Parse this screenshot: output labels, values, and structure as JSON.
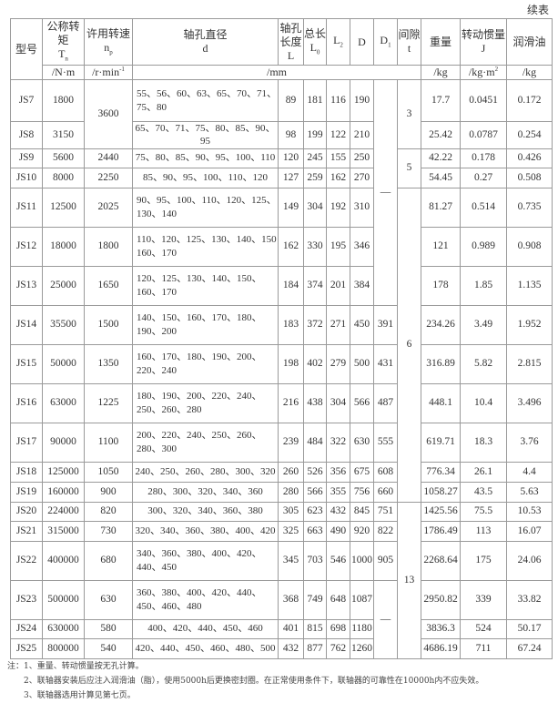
{
  "continued_label": "续表",
  "header": {
    "model": "型号",
    "torque": {
      "label": "公称转矩",
      "sym": "T",
      "sub": "n",
      "unit": "/N·m"
    },
    "speed": {
      "label": "许用转速",
      "sym": "n",
      "sub": "p",
      "unit": "/r·min",
      "unit_sup": "-1"
    },
    "bore": {
      "label": "轴孔直径",
      "sym": "d"
    },
    "bore_len": {
      "label": "轴孔长度",
      "sym": "L"
    },
    "total_len": {
      "label": "总长",
      "sym": "L",
      "sub": "0"
    },
    "l2": {
      "sym": "L",
      "sub": "2"
    },
    "d_outer": {
      "sym": "D"
    },
    "d1": {
      "sym": "D",
      "sub": "1"
    },
    "gap": {
      "label": "间隙",
      "sym": "t"
    },
    "weight": {
      "label": "重量",
      "unit": "/kg"
    },
    "inertia": {
      "label": "转动惯量",
      "sym": "J",
      "unit": "/kg·m",
      "unit_sup": "2"
    },
    "oil": {
      "label": "润滑油",
      "unit": "/kg"
    },
    "mm_unit": "/mm"
  },
  "rows": [
    {
      "model": "JS7",
      "T": "1800",
      "n": "3600",
      "d": "55、56、60、63、65、70、71、75、80",
      "L": "89",
      "L0": "181",
      "L2": "116",
      "D": "190",
      "D1": "—",
      "t": "3",
      "w": "17.7",
      "J": "0.0451",
      "oil": "0.172"
    },
    {
      "model": "JS8",
      "T": "3150",
      "n": "",
      "d": "65、70、71、75、80、85、90、95",
      "L": "98",
      "L0": "199",
      "L2": "122",
      "D": "210",
      "D1": "",
      "t": "",
      "w": "25.42",
      "J": "0.0787",
      "oil": "0.254"
    },
    {
      "model": "JS9",
      "T": "5600",
      "n": "2440",
      "d": "75、80、85、90、95、100、110",
      "L": "120",
      "L0": "245",
      "L2": "155",
      "D": "250",
      "D1": "",
      "t": "5",
      "w": "42.22",
      "J": "0.178",
      "oil": "0.426"
    },
    {
      "model": "JS10",
      "T": "8000",
      "n": "2250",
      "d": "85、90、95、100、110、120",
      "L": "127",
      "L0": "259",
      "L2": "162",
      "D": "270",
      "D1": "",
      "t": "",
      "w": "54.45",
      "J": "0.27",
      "oil": "0.508"
    },
    {
      "model": "JS11",
      "T": "12500",
      "n": "2025",
      "d": "90、95、100、110、120、125、130、140",
      "L": "149",
      "L0": "304",
      "L2": "192",
      "D": "310",
      "D1": "",
      "t": "6",
      "w": "81.27",
      "J": "0.514",
      "oil": "0.735"
    },
    {
      "model": "JS12",
      "T": "18000",
      "n": "1800",
      "d": "110、120、125、130、140、150 160、170",
      "L": "162",
      "L0": "330",
      "L2": "195",
      "D": "346",
      "D1": "",
      "t": "",
      "w": "121",
      "J": "0.989",
      "oil": "0.908"
    },
    {
      "model": "JS13",
      "T": "25000",
      "n": "1650",
      "d": "120、125、130、140、150、160、170",
      "L": "184",
      "L0": "374",
      "L2": "201",
      "D": "384",
      "D1": "",
      "t": "",
      "w": "178",
      "J": "1.85",
      "oil": "1.135"
    },
    {
      "model": "JS14",
      "T": "35500",
      "n": "1500",
      "d": "140、150、160、170、180、190、200",
      "L": "183",
      "L0": "372",
      "L2": "271",
      "D": "450",
      "D1": "391",
      "t": "",
      "w": "234.26",
      "J": "3.49",
      "oil": "1.952"
    },
    {
      "model": "JS15",
      "T": "50000",
      "n": "1350",
      "d": "160、170、180、190、200、220、240",
      "L": "198",
      "L0": "402",
      "L2": "279",
      "D": "500",
      "D1": "431",
      "t": "",
      "w": "316.89",
      "J": "5.82",
      "oil": "2.815"
    },
    {
      "model": "JS16",
      "T": "63000",
      "n": "1225",
      "d": "180、190、200、220、240、250、260、280",
      "L": "216",
      "L0": "438",
      "L2": "304",
      "D": "566",
      "D1": "487",
      "t": "",
      "w": "448.1",
      "J": "10.4",
      "oil": "3.496"
    },
    {
      "model": "JS17",
      "T": "90000",
      "n": "1100",
      "d": "200、220、240、250、260、280、300",
      "L": "239",
      "L0": "484",
      "L2": "322",
      "D": "630",
      "D1": "555",
      "t": "",
      "w": "619.71",
      "J": "18.3",
      "oil": "3.76"
    },
    {
      "model": "JS18",
      "T": "125000",
      "n": "1050",
      "d": "240、250、260、280、300、320",
      "L": "260",
      "L0": "526",
      "L2": "356",
      "D": "675",
      "D1": "608",
      "t": "",
      "w": "776.34",
      "J": "26.1",
      "oil": "4.4"
    },
    {
      "model": "JS19",
      "T": "160000",
      "n": "900",
      "d": "280、300、320、340、360",
      "L": "280",
      "L0": "566",
      "L2": "355",
      "D": "756",
      "D1": "660",
      "t": "",
      "w": "1058.27",
      "J": "43.5",
      "oil": "5.63"
    },
    {
      "model": "JS20",
      "T": "224000",
      "n": "820",
      "d": "300、320、340、360、380",
      "L": "305",
      "L0": "623",
      "L2": "432",
      "D": "845",
      "D1": "751",
      "t": "13",
      "w": "1425.56",
      "J": "75.5",
      "oil": "10.53"
    },
    {
      "model": "JS21",
      "T": "315000",
      "n": "730",
      "d": "320、340、360、380、400、420",
      "L": "325",
      "L0": "663",
      "L2": "490",
      "D": "920",
      "D1": "822",
      "t": "",
      "w": "1786.49",
      "J": "113",
      "oil": "16.07"
    },
    {
      "model": "JS22",
      "T": "400000",
      "n": "680",
      "d": "340、360、380、400、420、440、450",
      "L": "345",
      "L0": "703",
      "L2": "546",
      "D": "1000",
      "D1": "905",
      "t": "",
      "w": "2268.64",
      "J": "175",
      "oil": "24.06"
    },
    {
      "model": "JS23",
      "T": "500000",
      "n": "630",
      "d": "360、380、400、420、440、450、460、480",
      "L": "368",
      "L0": "749",
      "L2": "648",
      "D": "1087",
      "D1": "—",
      "t": "",
      "w": "2950.82",
      "J": "339",
      "oil": "33.82"
    },
    {
      "model": "JS24",
      "T": "630000",
      "n": "580",
      "d": "400、420、440、450、460",
      "L": "401",
      "L0": "815",
      "L2": "698",
      "D": "1180",
      "D1": "",
      "t": "",
      "w": "3836.3",
      "J": "524",
      "oil": "50.17"
    },
    {
      "model": "JS25",
      "T": "800000",
      "n": "540",
      "d": "420、440、450、460、480、500",
      "L": "432",
      "L0": "877",
      "L2": "762",
      "D": "1260",
      "D1": "",
      "t": "",
      "w": "4686.19",
      "J": "711",
      "oil": "67.24"
    }
  ],
  "notes": [
    "注：1、重量、转动惯量按无孔计算。",
    "2、联轴器安装后应注入润滑油（脂），使用5000h后更换密封圈。在正常使用条件下，联轴器的可靠性在10000h内不应失效。",
    "3、联轴器选用计算见第七页。"
  ]
}
